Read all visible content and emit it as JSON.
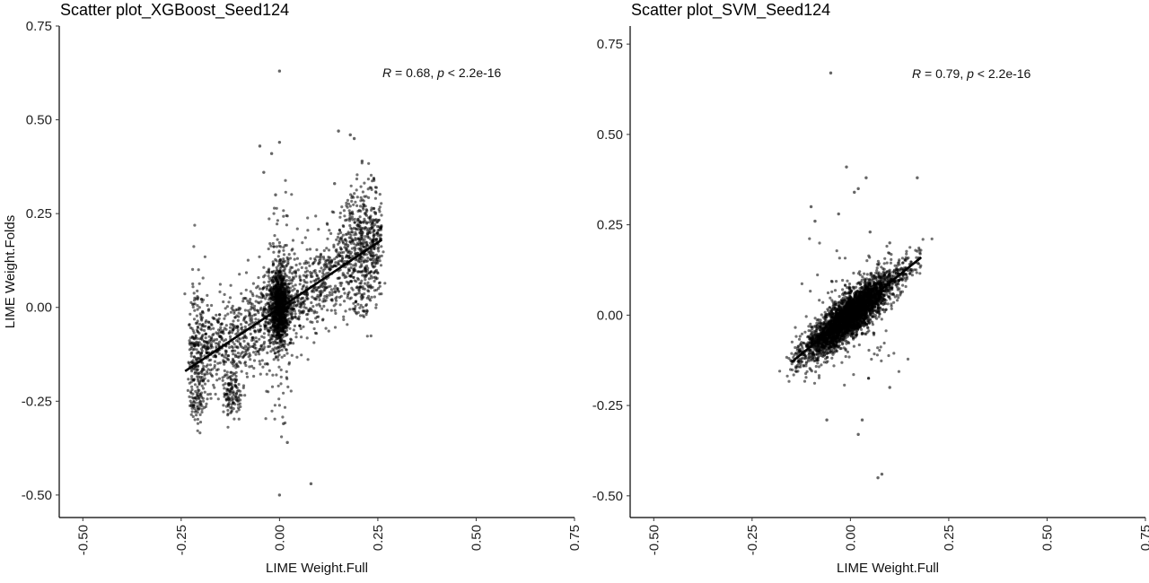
{
  "chart_data": [
    {
      "type": "scatter",
      "title": "Scatter plot_XGBoost_Seed124",
      "xlabel": "LIME Weight.Full",
      "ylabel": "LIME Weight.Folds",
      "xlim": [
        -0.56,
        0.75
      ],
      "ylim": [
        -0.56,
        0.75
      ],
      "xticks": [
        -0.5,
        -0.25,
        0.0,
        0.25,
        0.5,
        0.75
      ],
      "yticks": [
        -0.5,
        -0.25,
        0.0,
        0.25,
        0.5,
        0.75
      ],
      "tick_labels": [
        "-0.50",
        "-0.25",
        "0.00",
        "0.25",
        "0.50",
        "0.75"
      ],
      "annotation": {
        "r_label": "R",
        "r_text": " = 0.68, ",
        "p_label": "p",
        "p_text": " < 2.2e-16"
      },
      "fit_line": {
        "x": [
          -0.24,
          0.26
        ],
        "y": [
          -0.17,
          0.18
        ]
      },
      "point_color": "#000000",
      "grid": false,
      "outliers": {
        "x": [
          0.0,
          0.0,
          -0.05,
          -0.02,
          0.15,
          0.18,
          0.19,
          0.0,
          0.08,
          0.02,
          0.01,
          -0.04,
          0.21,
          0.14,
          -0.01
        ],
        "y": [
          0.63,
          0.44,
          0.43,
          0.41,
          0.47,
          0.46,
          0.45,
          -0.5,
          -0.47,
          -0.36,
          -0.31,
          0.36,
          0.39,
          0.33,
          0.3
        ]
      }
    },
    {
      "type": "scatter",
      "title": "Scatter plot_SVM_Seed124",
      "xlabel": "LIME Weight.Full",
      "ylabel": "",
      "xlim": [
        -0.56,
        0.75
      ],
      "ylim": [
        -0.56,
        0.8
      ],
      "xticks": [
        -0.5,
        -0.25,
        0.0,
        0.25,
        0.5,
        0.75
      ],
      "yticks": [
        -0.5,
        -0.25,
        0.0,
        0.25,
        0.5,
        0.75
      ],
      "tick_labels": [
        "-0.50",
        "-0.25",
        "0.00",
        "0.25",
        "0.50",
        "0.75"
      ],
      "annotation": {
        "r_label": "R",
        "r_text": " = 0.79, ",
        "p_label": "p",
        "p_text": " < 2.2e-16"
      },
      "fit_line": {
        "x": [
          -0.15,
          0.18
        ],
        "y": [
          -0.13,
          0.16
        ]
      },
      "point_color": "#000000",
      "grid": false,
      "outliers": {
        "x": [
          -0.05,
          -0.01,
          0.02,
          0.01,
          -0.03,
          0.04,
          -0.1,
          -0.09,
          0.05,
          0.1,
          0.17,
          0.02,
          -0.06,
          0.08,
          0.07,
          0.1,
          0.03,
          0.03
        ],
        "y": [
          0.67,
          0.41,
          0.35,
          0.34,
          0.28,
          0.38,
          0.3,
          0.26,
          0.23,
          0.2,
          0.38,
          -0.33,
          -0.29,
          -0.44,
          -0.45,
          -0.2,
          -0.29,
          -0.05
        ]
      }
    }
  ]
}
